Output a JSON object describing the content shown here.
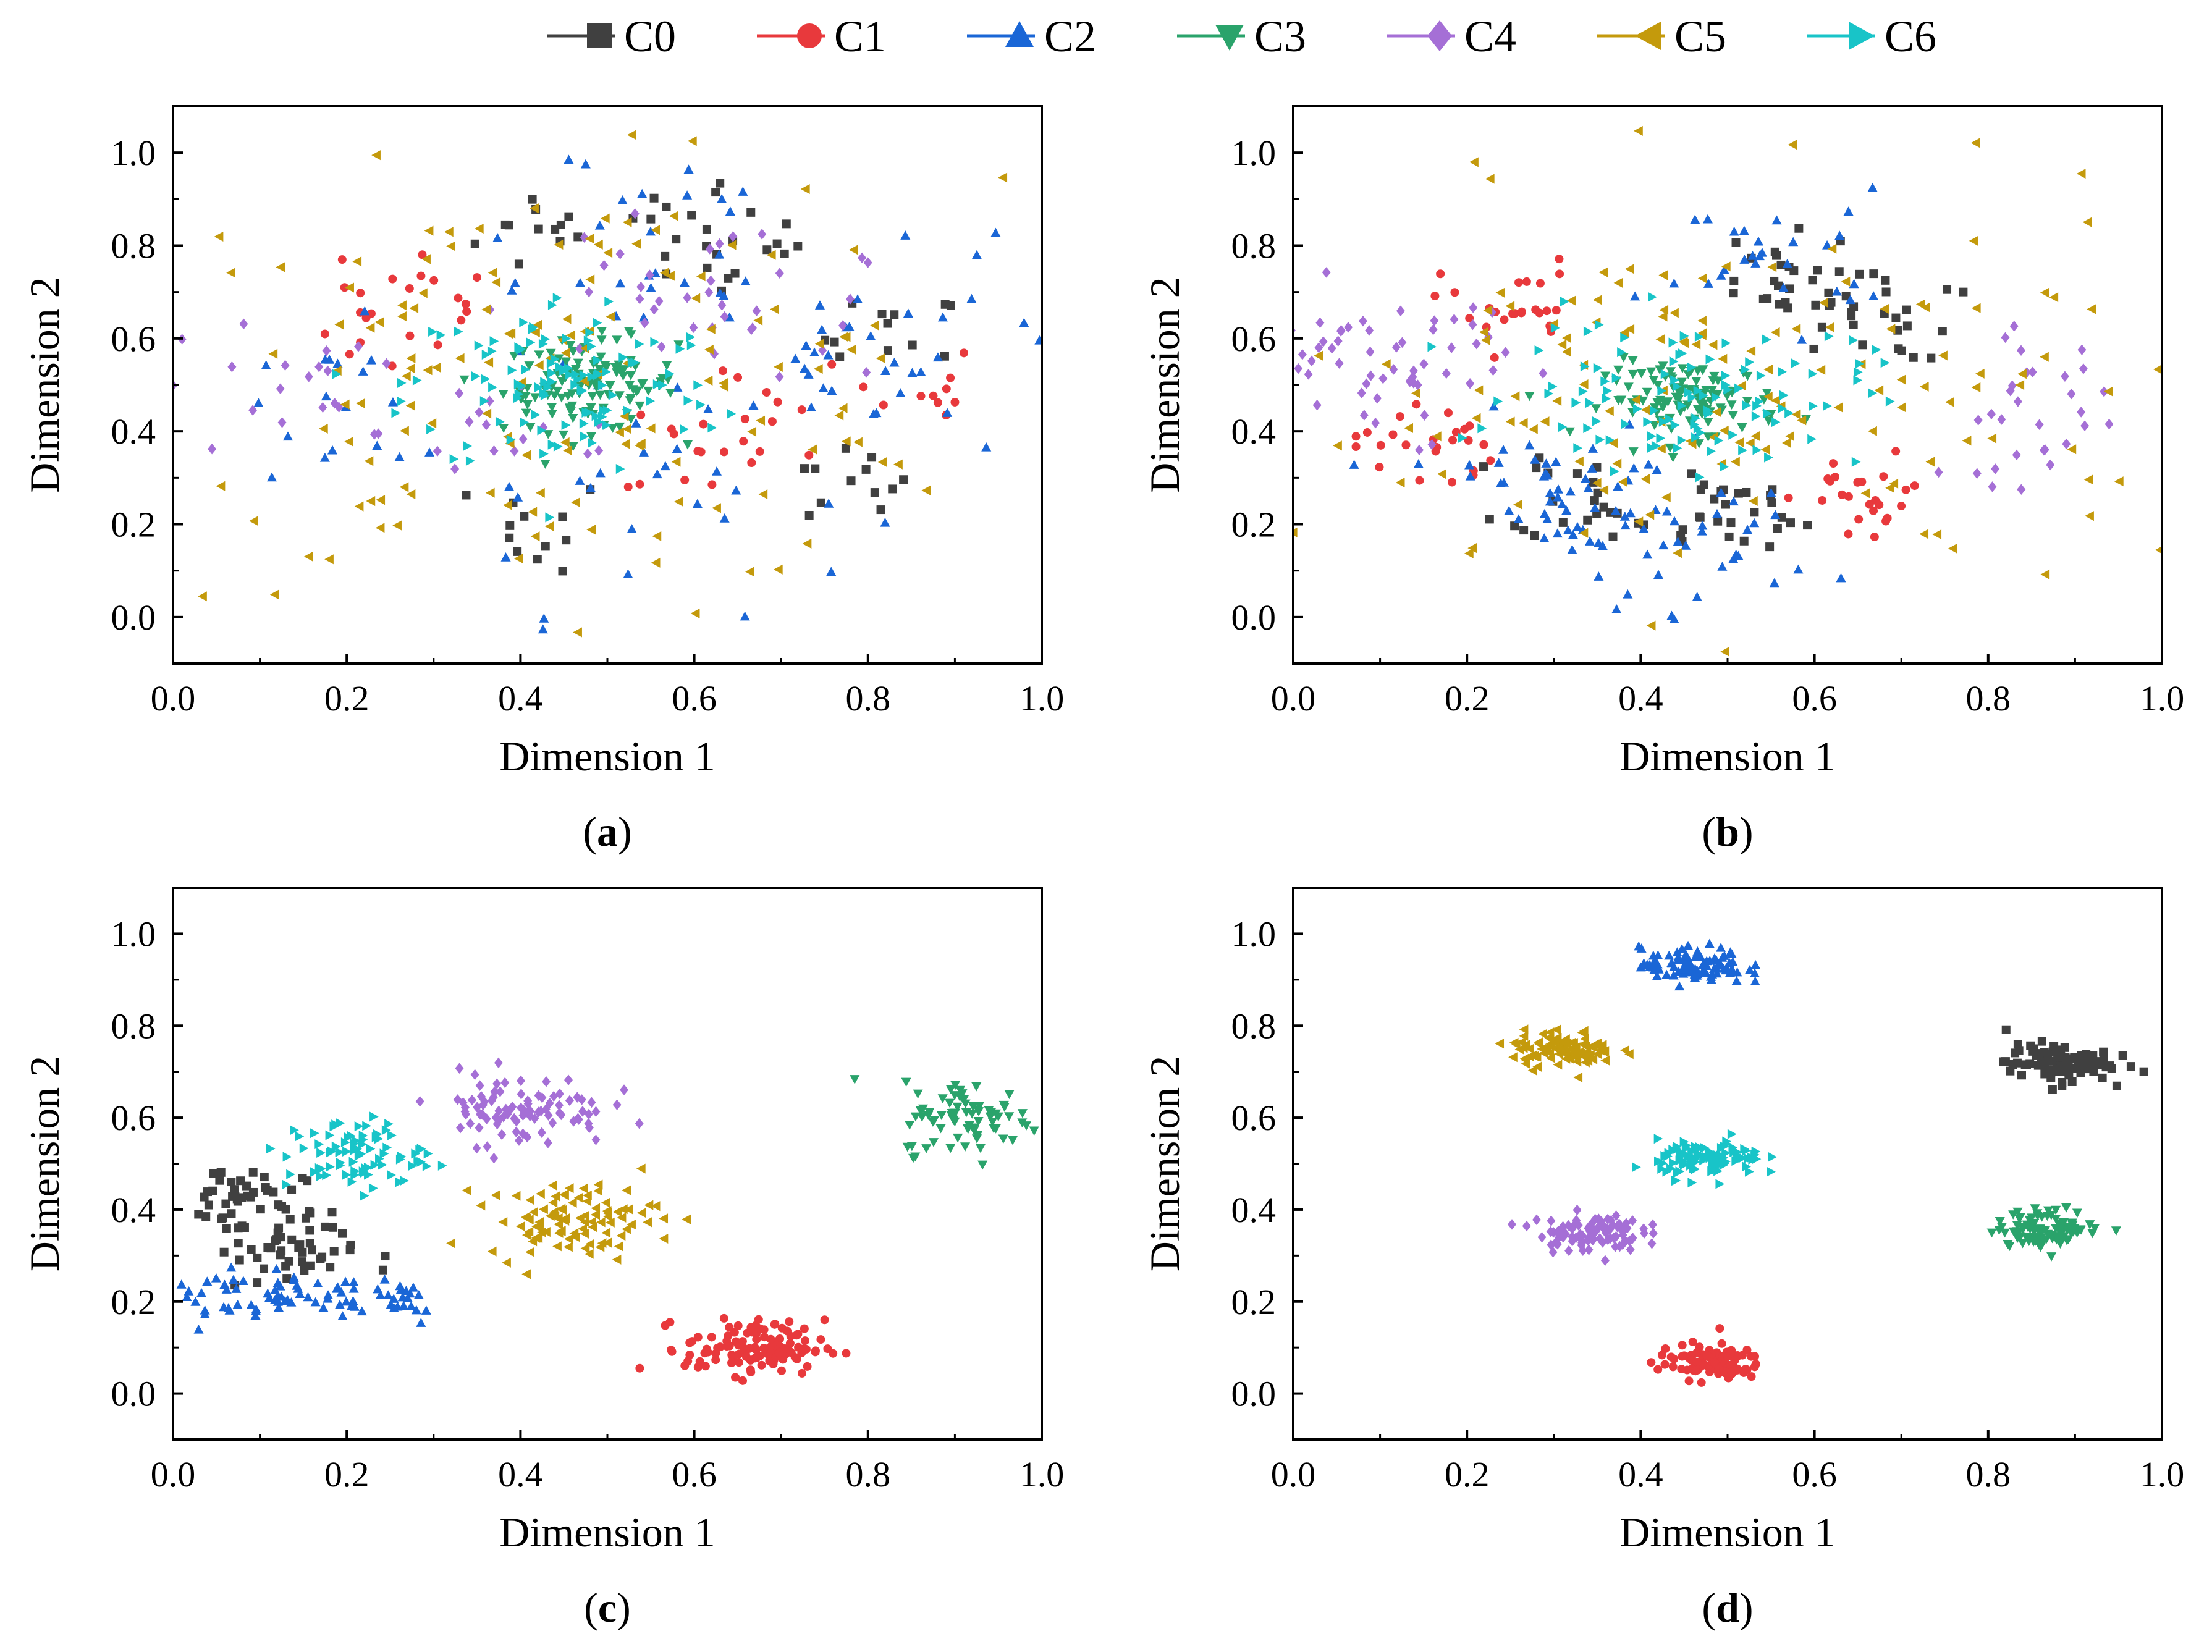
{
  "legend": {
    "entries": [
      {
        "label": "C0",
        "color": "#404040",
        "marker": "square"
      },
      {
        "label": "C1",
        "color": "#e8393c",
        "marker": "circle"
      },
      {
        "label": "C2",
        "color": "#1a66d6",
        "marker": "triangle-up"
      },
      {
        "label": "C3",
        "color": "#2aa36b",
        "marker": "triangle-down"
      },
      {
        "label": "C4",
        "color": "#a56fd6",
        "marker": "diamond"
      },
      {
        "label": "C5",
        "color": "#c49a0c",
        "marker": "triangle-left"
      },
      {
        "label": "C6",
        "color": "#18c4c8",
        "marker": "triangle-right"
      }
    ]
  },
  "chart_data": [
    {
      "type": "scatter",
      "panel_label": "a",
      "xlabel": "Dimension 1",
      "ylabel": "Dimension 2",
      "xlim": [
        0.0,
        1.0
      ],
      "ylim": [
        -0.1,
        1.1
      ],
      "xticks": [
        "0.0",
        "0.2",
        "0.4",
        "0.6",
        "0.8",
        "1.0"
      ],
      "yticks": [
        "0.0",
        "0.2",
        "0.4",
        "0.6",
        "0.8",
        "1.0"
      ],
      "clusters": [
        {
          "name": "C0",
          "centers": [
            [
              0.43,
              0.83
            ],
            [
              0.58,
              0.87
            ],
            [
              0.68,
              0.77
            ],
            [
              0.83,
              0.6
            ],
            [
              0.42,
              0.2
            ],
            [
              0.77,
              0.28
            ]
          ],
          "spread": [
            0.04,
            0.05
          ],
          "count": 70
        },
        {
          "name": "C1",
          "centers": [
            [
              0.22,
              0.62
            ],
            [
              0.29,
              0.68
            ],
            [
              0.68,
              0.4
            ],
            [
              0.6,
              0.37
            ],
            [
              0.85,
              0.48
            ]
          ],
          "spread": [
            0.04,
            0.06
          ],
          "count": 55
        },
        {
          "name": "C2",
          "centers": [
            [
              0.5,
              0.85
            ],
            [
              0.75,
              0.6
            ],
            [
              0.55,
              0.25
            ],
            [
              0.85,
              0.55
            ],
            [
              0.2,
              0.45
            ]
          ],
          "spread": [
            0.12,
            0.12
          ],
          "count": 110
        },
        {
          "name": "C3",
          "centers": [
            [
              0.48,
              0.5
            ]
          ],
          "spread": [
            0.05,
            0.05
          ],
          "count": 120
        },
        {
          "name": "C4",
          "centers": [
            [
              0.4,
              0.4
            ],
            [
              0.55,
              0.7
            ],
            [
              0.12,
              0.48
            ],
            [
              0.68,
              0.65
            ]
          ],
          "spread": [
            0.08,
            0.08
          ],
          "count": 70
        },
        {
          "name": "C5",
          "centers": [
            [
              0.45,
              0.5
            ]
          ],
          "spread": [
            0.25,
            0.22
          ],
          "count": 160
        },
        {
          "name": "C6",
          "centers": [
            [
              0.45,
              0.5
            ]
          ],
          "spread": [
            0.09,
            0.1
          ],
          "count": 110
        }
      ]
    },
    {
      "type": "scatter",
      "panel_label": "b",
      "xlabel": "Dimension 1",
      "ylabel": "Dimension 2",
      "xlim": [
        0.0,
        1.0
      ],
      "ylim": [
        -0.1,
        1.1
      ],
      "xticks": [
        "0.0",
        "0.2",
        "0.4",
        "0.6",
        "0.8",
        "1.0"
      ],
      "yticks": [
        "0.0",
        "0.2",
        "0.4",
        "0.6",
        "0.8",
        "1.0"
      ],
      "clusters": [
        {
          "name": "C0",
          "centers": [
            [
              0.35,
              0.27
            ],
            [
              0.5,
              0.22
            ],
            [
              0.55,
              0.72
            ],
            [
              0.66,
              0.65
            ]
          ],
          "spread": [
            0.05,
            0.05
          ],
          "count": 100
        },
        {
          "name": "C1",
          "centers": [
            [
              0.15,
              0.37
            ],
            [
              0.25,
              0.67
            ],
            [
              0.66,
              0.25
            ]
          ],
          "spread": [
            0.04,
            0.05
          ],
          "count": 70
        },
        {
          "name": "C2",
          "centers": [
            [
              0.35,
              0.2
            ],
            [
              0.55,
              0.78
            ],
            [
              0.48,
              0.15
            ],
            [
              0.28,
              0.3
            ]
          ],
          "spread": [
            0.07,
            0.07
          ],
          "count": 110
        },
        {
          "name": "C3",
          "centers": [
            [
              0.46,
              0.47
            ]
          ],
          "spread": [
            0.05,
            0.04
          ],
          "count": 110
        },
        {
          "name": "C4",
          "centers": [
            [
              0.85,
              0.45
            ],
            [
              0.05,
              0.55
            ],
            [
              0.15,
              0.55
            ]
          ],
          "spread": [
            0.05,
            0.08
          ],
          "count": 90
        },
        {
          "name": "C5",
          "centers": [
            [
              0.5,
              0.45
            ]
          ],
          "spread": [
            0.25,
            0.22
          ],
          "count": 160
        },
        {
          "name": "C6",
          "centers": [
            [
              0.46,
              0.48
            ]
          ],
          "spread": [
            0.1,
            0.08
          ],
          "count": 110
        }
      ]
    },
    {
      "type": "scatter",
      "panel_label": "c",
      "xlabel": "Dimension 1",
      "ylabel": "Dimension 2",
      "xlim": [
        0.0,
        1.0
      ],
      "ylim": [
        -0.1,
        1.1
      ],
      "xticks": [
        "0.0",
        "0.2",
        "0.4",
        "0.6",
        "0.8",
        "1.0"
      ],
      "yticks": [
        "0.0",
        "0.2",
        "0.4",
        "0.6",
        "0.8",
        "1.0"
      ],
      "clusters": [
        {
          "name": "C0",
          "centers": [
            [
              0.07,
              0.42
            ],
            [
              0.13,
              0.31
            ]
          ],
          "spread": [
            0.04,
            0.04
          ],
          "count": 90
        },
        {
          "name": "C1",
          "centers": [
            [
              0.67,
              0.1
            ]
          ],
          "spread": [
            0.04,
            0.03
          ],
          "count": 120
        },
        {
          "name": "C2",
          "centers": [
            [
              0.05,
              0.21
            ],
            [
              0.24,
              0.21
            ],
            [
              0.14,
              0.22
            ]
          ],
          "spread": [
            0.04,
            0.03
          ],
          "count": 90
        },
        {
          "name": "C3",
          "centers": [
            [
              0.92,
              0.6
            ]
          ],
          "spread": [
            0.04,
            0.04
          ],
          "count": 80
        },
        {
          "name": "C4",
          "centers": [
            [
              0.4,
              0.62
            ]
          ],
          "spread": [
            0.05,
            0.04
          ],
          "count": 90
        },
        {
          "name": "C5",
          "centers": [
            [
              0.46,
              0.38
            ]
          ],
          "spread": [
            0.05,
            0.04
          ],
          "count": 100
        },
        {
          "name": "C6",
          "centers": [
            [
              0.21,
              0.52
            ]
          ],
          "spread": [
            0.04,
            0.04
          ],
          "count": 80
        }
      ]
    },
    {
      "type": "scatter",
      "panel_label": "d",
      "xlabel": "Dimension 1",
      "ylabel": "Dimension 2",
      "xlim": [
        0.0,
        1.0
      ],
      "ylim": [
        -0.1,
        1.1
      ],
      "xticks": [
        "0.0",
        "0.2",
        "0.4",
        "0.6",
        "0.8",
        "1.0"
      ],
      "yticks": [
        "0.0",
        "0.2",
        "0.4",
        "0.6",
        "0.8",
        "1.0"
      ],
      "clusters": [
        {
          "name": "C0",
          "centers": [
            [
              0.88,
              0.72
            ]
          ],
          "spread": [
            0.03,
            0.02
          ],
          "count": 100
        },
        {
          "name": "C1",
          "centers": [
            [
              0.48,
              0.07
            ]
          ],
          "spread": [
            0.03,
            0.02
          ],
          "count": 100
        },
        {
          "name": "C2",
          "centers": [
            [
              0.46,
              0.93
            ]
          ],
          "spread": [
            0.03,
            0.02
          ],
          "count": 100
        },
        {
          "name": "C3",
          "centers": [
            [
              0.87,
              0.36
            ]
          ],
          "spread": [
            0.03,
            0.02
          ],
          "count": 100
        },
        {
          "name": "C4",
          "centers": [
            [
              0.34,
              0.35
            ]
          ],
          "spread": [
            0.03,
            0.02
          ],
          "count": 100
        },
        {
          "name": "C5",
          "centers": [
            [
              0.31,
              0.75
            ]
          ],
          "spread": [
            0.03,
            0.02
          ],
          "count": 100
        },
        {
          "name": "C6",
          "centers": [
            [
              0.48,
              0.51
            ]
          ],
          "spread": [
            0.03,
            0.02
          ],
          "count": 100
        }
      ]
    }
  ]
}
